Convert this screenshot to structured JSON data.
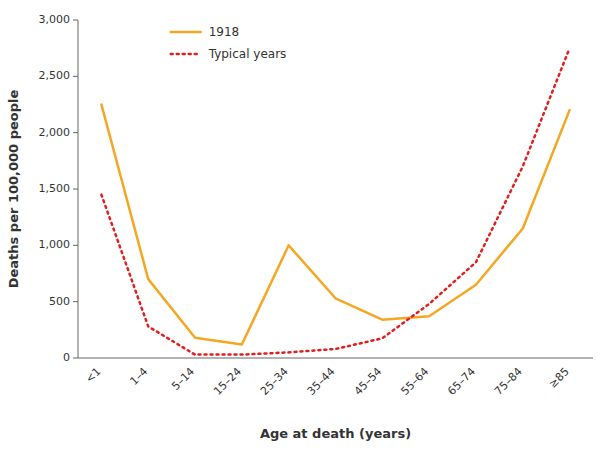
{
  "chart_data": {
    "type": "line",
    "categories": [
      "<1",
      "1–4",
      "5–14",
      "15–24",
      "25–34",
      "35–44",
      "45–54",
      "55–64",
      "65–74",
      "75–84",
      "≥85"
    ],
    "series": [
      {
        "name": "1918",
        "color": "#F5A623",
        "line_style": "solid",
        "values": [
          2250,
          700,
          180,
          120,
          1000,
          530,
          340,
          370,
          650,
          1150,
          2200
        ]
      },
      {
        "name": "Typical years",
        "color": "#E02020",
        "line_style": "dotted",
        "values": [
          1450,
          280,
          30,
          30,
          50,
          80,
          175,
          480,
          850,
          1700,
          2750
        ]
      }
    ],
    "xlabel": "Age at death (years)",
    "ylabel": "Deaths per 100,000 people",
    "ylim": [
      0,
      3000
    ],
    "yticks": [
      0,
      500,
      {
        "value": 1000,
        "label": "1,000"
      },
      {
        "value": 1500,
        "label": "1,500"
      },
      {
        "value": 2000,
        "label": "2,000"
      },
      {
        "value": 2500,
        "label": "2,500"
      },
      {
        "value": 3000,
        "label": "3,000"
      }
    ],
    "grid": false,
    "legend": "upper left"
  }
}
